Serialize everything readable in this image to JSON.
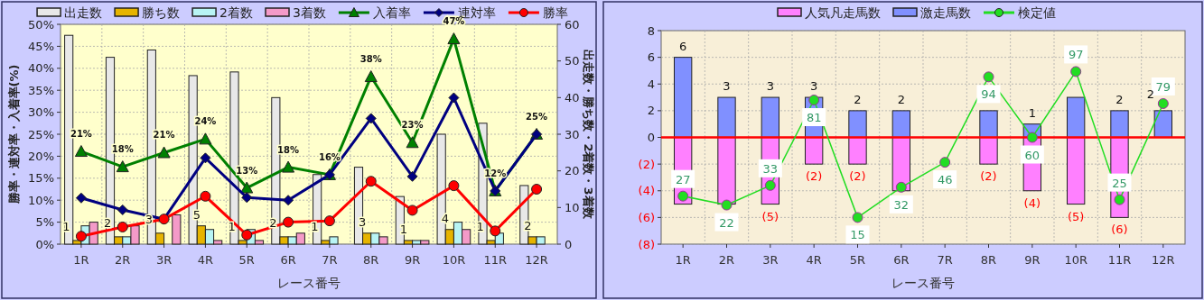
{
  "chart_data": [
    {
      "type": "bar",
      "categories": [
        "1R",
        "2R",
        "3R",
        "4R",
        "5R",
        "6R",
        "7R",
        "8R",
        "9R",
        "10R",
        "11R",
        "12R"
      ],
      "xlabel": "レース番号",
      "ylabel": "勝率・連対率・入着率(%)",
      "y2label": "出走数・勝ち数・2着数・3着数",
      "ylim": [
        0,
        50
      ],
      "yticks": [
        {
          "value": 0,
          "label": "0%"
        },
        {
          "value": 5,
          "label": "5%"
        },
        {
          "value": 10,
          "label": "10%"
        },
        {
          "value": 15,
          "label": "15%"
        },
        {
          "value": 20,
          "label": "20%"
        },
        {
          "value": 25,
          "label": "25%"
        },
        {
          "value": 30,
          "label": "30%"
        },
        {
          "value": 35,
          "label": "35%"
        },
        {
          "value": 40,
          "label": "40%"
        },
        {
          "value": 45,
          "label": "45%"
        },
        {
          "value": 50,
          "label": "50%"
        }
      ],
      "y2lim": [
        0,
        60
      ],
      "y2ticks": [
        0,
        10,
        20,
        30,
        40,
        50,
        60
      ],
      "grid": true,
      "legend": "top",
      "series": [
        {
          "name": "出走数",
          "type": "bar",
          "axis": "y2",
          "color": "#e8e8e8",
          "values": [
            57,
            51,
            53,
            46,
            47,
            40,
            19,
            21,
            13,
            30,
            33,
            16
          ]
        },
        {
          "name": "勝ち数",
          "type": "bar",
          "axis": "y2",
          "color": "#e6b400",
          "values": [
            1,
            2,
            3,
            5,
            1,
            2,
            1,
            3,
            1,
            4,
            1,
            2
          ],
          "value_labels": [
            "1",
            "2",
            "3",
            "5",
            "1",
            "2",
            "1",
            "3",
            "1",
            "4",
            "1",
            "2"
          ]
        },
        {
          "name": "2着数",
          "type": "bar",
          "axis": "y2",
          "color": "#b8f4f4",
          "values": [
            5,
            2,
            0,
            4,
            4,
            2,
            2,
            3,
            1,
            6,
            3,
            2
          ]
        },
        {
          "name": "3着数",
          "type": "bar",
          "axis": "y2",
          "color": "#f49ac8",
          "values": [
            6,
            5,
            8,
            1,
            1,
            3,
            0,
            2,
            1,
            4,
            0,
            0
          ]
        },
        {
          "name": "入着率",
          "type": "line",
          "color": "#008000",
          "marker": "triangle",
          "values": [
            21.1,
            17.6,
            20.8,
            23.9,
            12.8,
            17.5,
            15.8,
            38.1,
            23.1,
            46.7,
            12.1,
            25.0
          ],
          "value_labels": [
            "21%",
            "18%",
            "21%",
            "24%",
            "13%",
            "18%",
            "16%",
            "38%",
            "23%",
            "47%",
            "12%",
            "25%"
          ]
        },
        {
          "name": "連対率",
          "type": "line",
          "color": "#000080",
          "marker": "diamond",
          "values": [
            10.5,
            7.8,
            5.7,
            19.6,
            10.6,
            10.0,
            15.8,
            28.6,
            15.4,
            33.3,
            12.1,
            25.0
          ]
        },
        {
          "name": "勝率",
          "type": "line",
          "color": "#ff0000",
          "marker": "circle",
          "values": [
            1.8,
            3.9,
            5.7,
            10.9,
            2.1,
            5.0,
            5.3,
            14.3,
            7.7,
            13.3,
            3.0,
            12.5
          ]
        }
      ]
    },
    {
      "type": "bar",
      "stacked": true,
      "categories": [
        "1R",
        "2R",
        "3R",
        "4R",
        "5R",
        "6R",
        "7R",
        "8R",
        "9R",
        "10R",
        "11R",
        "12R"
      ],
      "xlabel": "レース番号",
      "ylim": [
        -8,
        8
      ],
      "yticks": [
        {
          "value": -8,
          "label": "(8)"
        },
        {
          "value": -6,
          "label": "(6)"
        },
        {
          "value": -4,
          "label": "(4)"
        },
        {
          "value": -2,
          "label": "(2)"
        },
        0,
        2,
        4,
        6,
        8
      ],
      "y2lim": [
        0,
        120
      ],
      "grid": true,
      "legend": "top",
      "ref_lines": [
        {
          "axis": "y",
          "value": 0,
          "color": "#ff0000"
        }
      ],
      "series": [
        {
          "name": "人気凡走馬数",
          "type": "bar",
          "color": "#ff80ff",
          "values": [
            -5,
            -5,
            -5,
            -2,
            -2,
            -4,
            0,
            -2,
            -4,
            -5,
            -6,
            0
          ],
          "value_labels": [
            null,
            null,
            "(5)",
            "(2)",
            "(2)",
            null,
            null,
            "(2)",
            "(4)",
            "(5)",
            "(6)",
            null
          ]
        },
        {
          "name": "激走馬数",
          "type": "bar",
          "color": "#8090ff",
          "values": [
            6,
            3,
            3,
            3,
            2,
            2,
            0,
            2,
            1,
            3,
            2,
            2
          ],
          "value_labels": [
            "6",
            "3",
            "3",
            "3",
            "2",
            "2",
            null,
            null,
            "1",
            null,
            "2",
            "2"
          ]
        },
        {
          "name": "検定値",
          "type": "line",
          "axis": "y2",
          "color": "#22dd22",
          "marker": "circle",
          "values": [
            27,
            22,
            33,
            81,
            15,
            32,
            46,
            94,
            60,
            97,
            25,
            79
          ],
          "value_labels": [
            "27",
            "22",
            "33",
            "81",
            "15",
            "32",
            "46",
            "94",
            "60",
            "97",
            "25",
            "79"
          ]
        }
      ]
    }
  ]
}
